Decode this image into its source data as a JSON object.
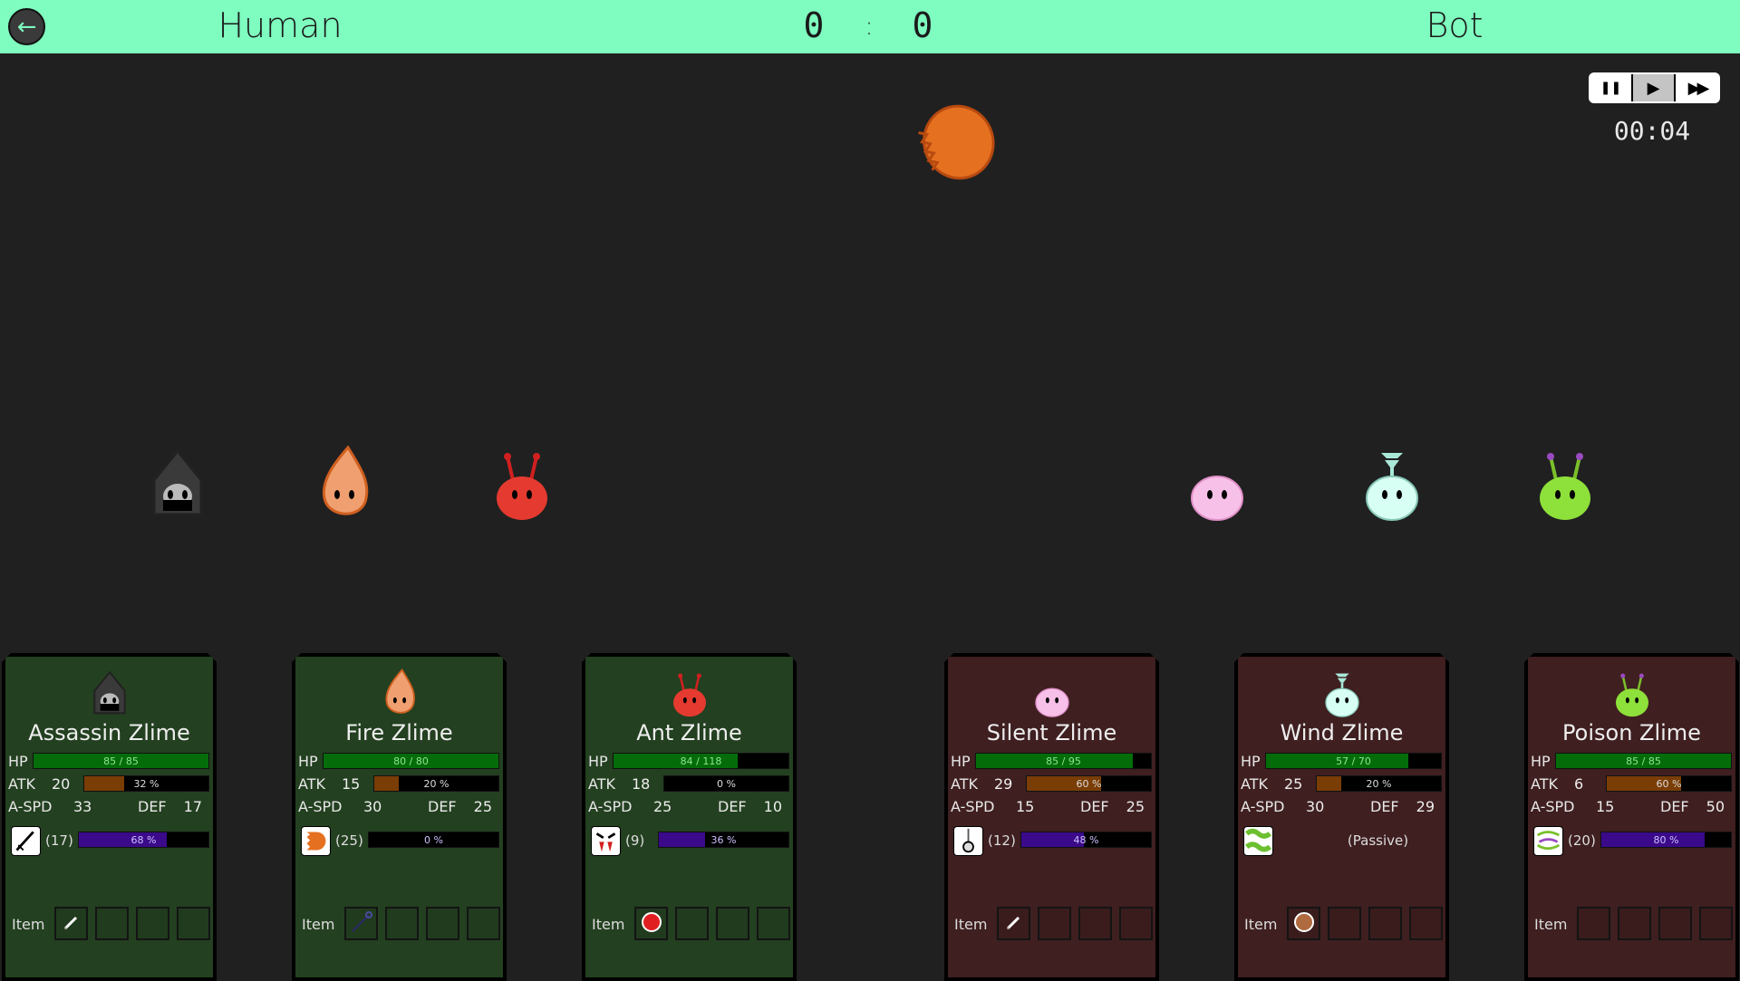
{
  "topbar": {
    "back_icon": "arrow-left-icon",
    "left_player": "Human",
    "right_player": "Bot",
    "score_left": "0",
    "score_sep": ":",
    "score_right": "0",
    "color": "#7ffcbf"
  },
  "controls": {
    "pause_icon": "❚❚",
    "play_icon": "▶",
    "fast_forward_icon": "▶▶",
    "active": "play"
  },
  "timer": "00:04",
  "labels": {
    "hp": "HP",
    "atk": "ATK",
    "aspd": "A-SPD",
    "def": "DEF",
    "item": "Item"
  },
  "colors": {
    "ally_card": "#234020",
    "enemy_card": "#3f1f20",
    "hp_bar": "#046d0a",
    "atk_bar": "#7a3d05",
    "ability_bar": "#3a0a8a"
  },
  "cards": [
    {
      "team": "ally",
      "name": "Assassin Zlime",
      "type": "assassin",
      "hp": 85,
      "hp_max": 85,
      "hp_text": "85 / 85",
      "atk": "20",
      "atk_charge": 32,
      "atk_text": "32 %",
      "aspd": "33",
      "def": "17",
      "ability_icon": "dagger-icon",
      "ability_cost": "(17)",
      "ability_charge": 68,
      "ability_text": "68 %",
      "items": [
        "dagger"
      ]
    },
    {
      "team": "ally",
      "name": "Fire Zlime",
      "type": "fire",
      "hp": 80,
      "hp_max": 80,
      "hp_text": "80 / 80",
      "atk": "15",
      "atk_charge": 20,
      "atk_text": "20 %",
      "aspd": "30",
      "def": "25",
      "ability_icon": "fireball-icon",
      "ability_cost": "(25)",
      "ability_charge": 0,
      "ability_text": "0 %",
      "items": [
        "staff"
      ]
    },
    {
      "team": "ally",
      "name": "Ant Zlime",
      "type": "ant",
      "hp": 84,
      "hp_max": 118,
      "hp_text": "84 / 118",
      "atk": "18",
      "atk_charge": 0,
      "atk_text": "0 %",
      "aspd": "25",
      "def": "10",
      "ability_icon": "fangs-icon",
      "ability_cost": "(9)",
      "ability_charge": 36,
      "ability_text": "36 %",
      "items": [
        "red-orb"
      ]
    },
    {
      "team": "enemy",
      "name": "Silent Zlime",
      "type": "silent",
      "hp": 85,
      "hp_max": 95,
      "hp_text": "85 / 95",
      "atk": "29",
      "atk_charge": 60,
      "atk_text": "60 %",
      "aspd": "15",
      "def": "25",
      "ability_icon": "pendulum-icon",
      "ability_cost": "(12)",
      "ability_charge": 48,
      "ability_text": "48 %",
      "items": [
        "dagger"
      ]
    },
    {
      "team": "enemy",
      "name": "Wind Zlime",
      "type": "wind",
      "hp": 57,
      "hp_max": 70,
      "hp_text": "57 / 70",
      "atk": "25",
      "atk_charge": 20,
      "atk_text": "20 %",
      "aspd": "30",
      "def": "29",
      "ability_icon": "wind-icon",
      "ability_passive": "(Passive)",
      "items": [
        "brown-orb"
      ]
    },
    {
      "team": "enemy",
      "name": "Poison Zlime",
      "type": "poison",
      "hp": 85,
      "hp_max": 85,
      "hp_text": "85 / 85",
      "atk": "6",
      "atk_charge": 60,
      "atk_text": "60 %",
      "aspd": "15",
      "def": "50",
      "ability_icon": "poison-cloud-icon",
      "ability_cost": "(20)",
      "ability_charge": 80,
      "ability_text": "80 %",
      "items": []
    }
  ],
  "field": [
    {
      "type": "assassin",
      "team": "ally"
    },
    {
      "type": "fire",
      "team": "ally"
    },
    {
      "type": "ant",
      "team": "ally"
    },
    {
      "type": "silent",
      "team": "enemy"
    },
    {
      "type": "wind",
      "team": "enemy"
    },
    {
      "type": "poison",
      "team": "enemy"
    }
  ],
  "projectile": "fireball"
}
